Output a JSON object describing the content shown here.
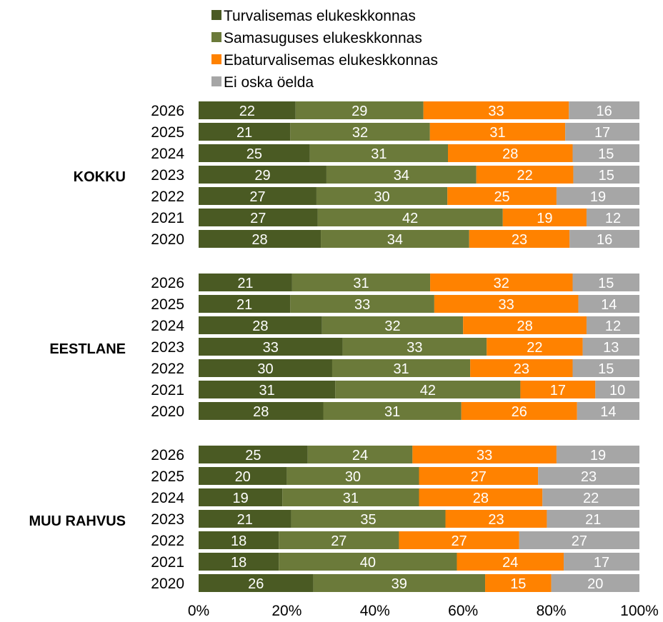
{
  "chart_data": {
    "type": "bar",
    "orientation": "horizontal",
    "stacked": "percent",
    "series": [
      {
        "name": "Turvalisemas elukeskkonnas",
        "color": "#4a5a23"
      },
      {
        "name": "Samasuguses elukeskkonnas",
        "color": "#6b7a3a"
      },
      {
        "name": "Ebaturvalisemas elukeskkonnas",
        "color": "#ff8200"
      },
      {
        "name": "Ei oska öelda",
        "color": "#a6a6a6"
      }
    ],
    "groups": [
      {
        "label": "KOKKU",
        "rows": [
          {
            "year": "2026",
            "values": [
              22,
              29,
              33,
              16
            ]
          },
          {
            "year": "2025",
            "values": [
              21,
              32,
              31,
              17
            ]
          },
          {
            "year": "2024",
            "values": [
              25,
              31,
              28,
              15
            ]
          },
          {
            "year": "2023",
            "values": [
              29,
              34,
              22,
              15
            ]
          },
          {
            "year": "2022",
            "values": [
              27,
              30,
              25,
              19
            ]
          },
          {
            "year": "2021",
            "values": [
              27,
              42,
              19,
              12
            ]
          },
          {
            "year": "2020",
            "values": [
              28,
              34,
              23,
              16
            ]
          }
        ]
      },
      {
        "label": "EESTLANE",
        "rows": [
          {
            "year": "2026",
            "values": [
              21,
              31,
              32,
              15
            ]
          },
          {
            "year": "2025",
            "values": [
              21,
              33,
              33,
              14
            ]
          },
          {
            "year": "2024",
            "values": [
              28,
              32,
              28,
              12
            ]
          },
          {
            "year": "2023",
            "values": [
              33,
              33,
              22,
              13
            ]
          },
          {
            "year": "2022",
            "values": [
              30,
              31,
              23,
              15
            ]
          },
          {
            "year": "2021",
            "values": [
              31,
              42,
              17,
              10
            ]
          },
          {
            "year": "2020",
            "values": [
              28,
              31,
              26,
              14
            ]
          }
        ]
      },
      {
        "label": "MUU RAHVUS",
        "rows": [
          {
            "year": "2026",
            "values": [
              25,
              24,
              33,
              19
            ]
          },
          {
            "year": "2025",
            "values": [
              20,
              30,
              27,
              23
            ]
          },
          {
            "year": "2024",
            "values": [
              19,
              31,
              28,
              22
            ]
          },
          {
            "year": "2023",
            "values": [
              21,
              35,
              23,
              21
            ]
          },
          {
            "year": "2022",
            "values": [
              18,
              27,
              27,
              27
            ]
          },
          {
            "year": "2021",
            "values": [
              18,
              40,
              24,
              17
            ]
          },
          {
            "year": "2020",
            "values": [
              26,
              39,
              15,
              20
            ]
          }
        ]
      }
    ],
    "x_ticks": [
      "0%",
      "20%",
      "40%",
      "60%",
      "80%",
      "100%"
    ],
    "xlim": [
      0,
      100
    ],
    "legend_position": "top",
    "grid": false
  }
}
